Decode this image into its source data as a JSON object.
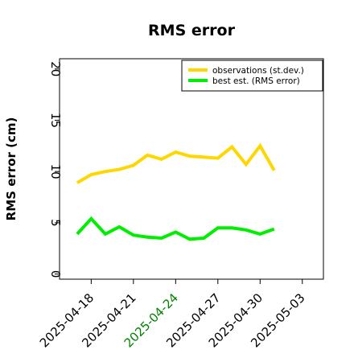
{
  "chart_data": {
    "type": "line",
    "title": "RMS error",
    "xlabel": "",
    "ylabel": "RMS error (cm)",
    "ylim": [
      -0.5,
      21
    ],
    "yticks": [
      0,
      5,
      10,
      15,
      20
    ],
    "xlim": [
      "2025-04-15T18:00",
      "2025-05-04T12:00"
    ],
    "xticks": [
      "2025-04-18",
      "2025-04-21",
      "2025-04-24",
      "2025-04-27",
      "2025-04-30",
      "2025-05-03"
    ],
    "xtick_colors": [
      "#000000",
      "#000000",
      "#008000",
      "#000000",
      "#000000",
      "#000000"
    ],
    "grid": false,
    "legend_position": "top-right",
    "x": [
      "2025-04-17",
      "2025-04-18",
      "2025-04-19",
      "2025-04-20",
      "2025-04-21",
      "2025-04-22",
      "2025-04-23",
      "2025-04-24",
      "2025-04-25",
      "2025-04-26",
      "2025-04-27",
      "2025-04-28",
      "2025-04-29",
      "2025-04-30",
      "2025-05-01"
    ],
    "series": [
      {
        "name": "observations (st.dev.)",
        "color": "#FFD700",
        "values": [
          8.9,
          9.7,
          10.0,
          10.2,
          10.6,
          11.6,
          11.2,
          11.9,
          11.5,
          11.4,
          11.3,
          12.4,
          10.7,
          12.5,
          10.1
        ]
      },
      {
        "name": "best est. (RMS error)",
        "color": "#00EE00",
        "values": [
          3.9,
          5.4,
          3.9,
          4.6,
          3.8,
          3.6,
          3.5,
          4.1,
          3.4,
          3.5,
          4.5,
          4.5,
          4.3,
          3.9,
          4.4
        ]
      }
    ]
  }
}
